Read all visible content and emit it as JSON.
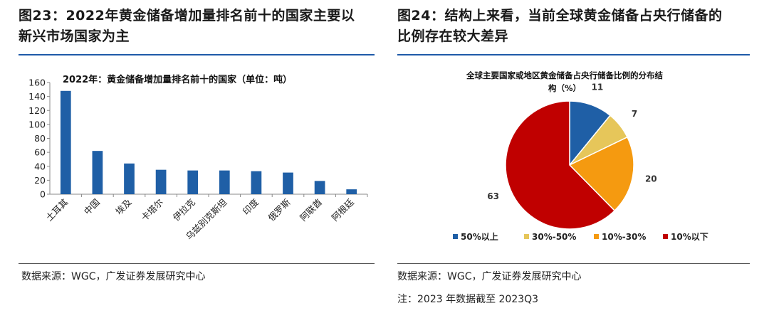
{
  "left": {
    "title_line1": "图23：2022年黄金储备增加量排名前十的国家主要以",
    "title_line2": "新兴市场国家为主",
    "source": "数据来源：WGC，广发证券发展研究中心"
  },
  "right": {
    "title_line1": "图24：结构上来看，当前全球黄金储备占央行储备的",
    "title_line2": "比例存在较大差异",
    "source": "数据来源：WGC，广发证券发展研究中心",
    "note": "注：2023 年数据截至 2023Q3"
  },
  "chart_data": [
    {
      "type": "bar",
      "title": "2022年：黄金储备增加量排名前十的国家（单位：吨）",
      "categories": [
        "土耳其",
        "中国",
        "埃及",
        "卡塔尔",
        "伊拉克",
        "乌兹别克斯坦",
        "印度",
        "俄罗斯",
        "阿联酋",
        "阿根廷"
      ],
      "values": [
        148,
        62,
        44,
        35,
        34,
        34,
        33,
        31,
        19,
        7
      ],
      "ylim": [
        0,
        160
      ],
      "yticks": [
        "0",
        "20",
        "40",
        "60",
        "80",
        "100",
        "120",
        "140",
        "160"
      ],
      "color": "#1f5fa6",
      "grid": false
    },
    {
      "type": "pie",
      "title_line1": "全球主要国家或地区黄金储备占央行储备比例的分布结",
      "title_line2": "构（%）",
      "categories": [
        "50%以上",
        "30%-50%",
        "10%-30%",
        "10%以下"
      ],
      "values": [
        11,
        7,
        20,
        63
      ],
      "value_labels": [
        "11",
        "7",
        "20",
        "63"
      ],
      "colors": [
        "#1f5fa6",
        "#e6c65a",
        "#f59a10",
        "#c00000"
      ],
      "legend": "bottom"
    }
  ]
}
